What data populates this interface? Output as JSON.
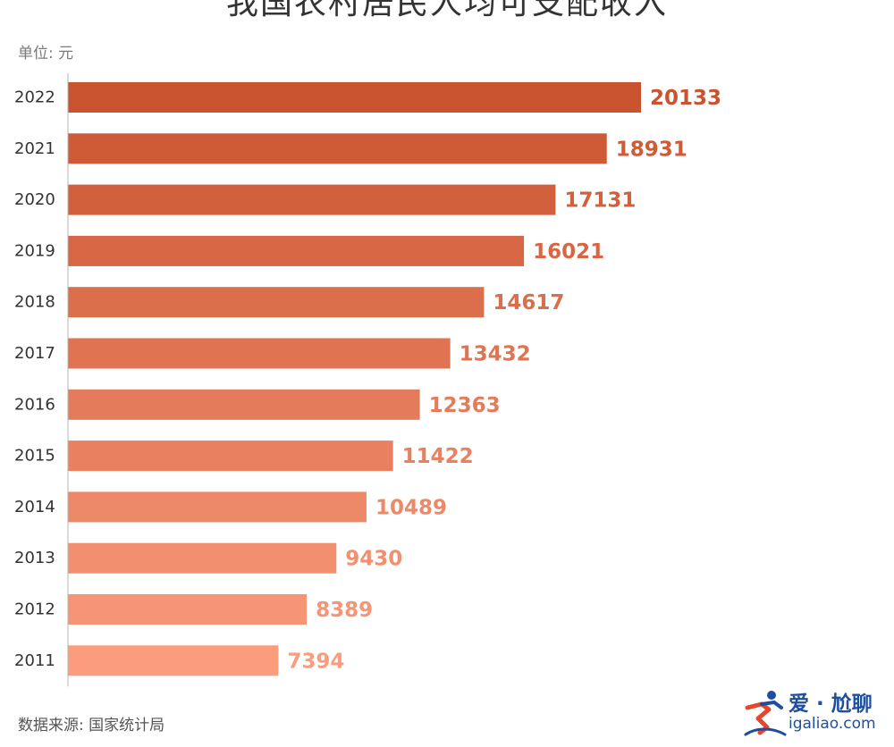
{
  "chart_data": {
    "type": "bar",
    "orientation": "horizontal",
    "title": "我国农村居民人均可支配收入",
    "unit_label": "单位: 元",
    "source": "数据来源: 国家统计局",
    "categories": [
      "2022",
      "2021",
      "2020",
      "2019",
      "2018",
      "2017",
      "2016",
      "2015",
      "2014",
      "2013",
      "2012",
      "2011"
    ],
    "values": [
      20133,
      18931,
      17131,
      16021,
      14617,
      13432,
      12363,
      11422,
      10489,
      9430,
      8389,
      7394
    ],
    "data_labels": [
      "20133",
      "18931",
      "17131",
      "16021",
      "14617",
      "13432",
      "12363",
      "11422",
      "10489",
      "9430",
      "8389",
      "7394"
    ],
    "xlim": [
      0,
      20133
    ],
    "grid": false,
    "legend": "none",
    "colors": {
      "darkest": "#c9532f",
      "lightest": "#fb9c7d"
    }
  },
  "logo": {
    "top_text": "爱 · 尬聊",
    "bottom_text": "igaliao.com",
    "color": "#1f4e9c",
    "accent": "#e8452e"
  }
}
